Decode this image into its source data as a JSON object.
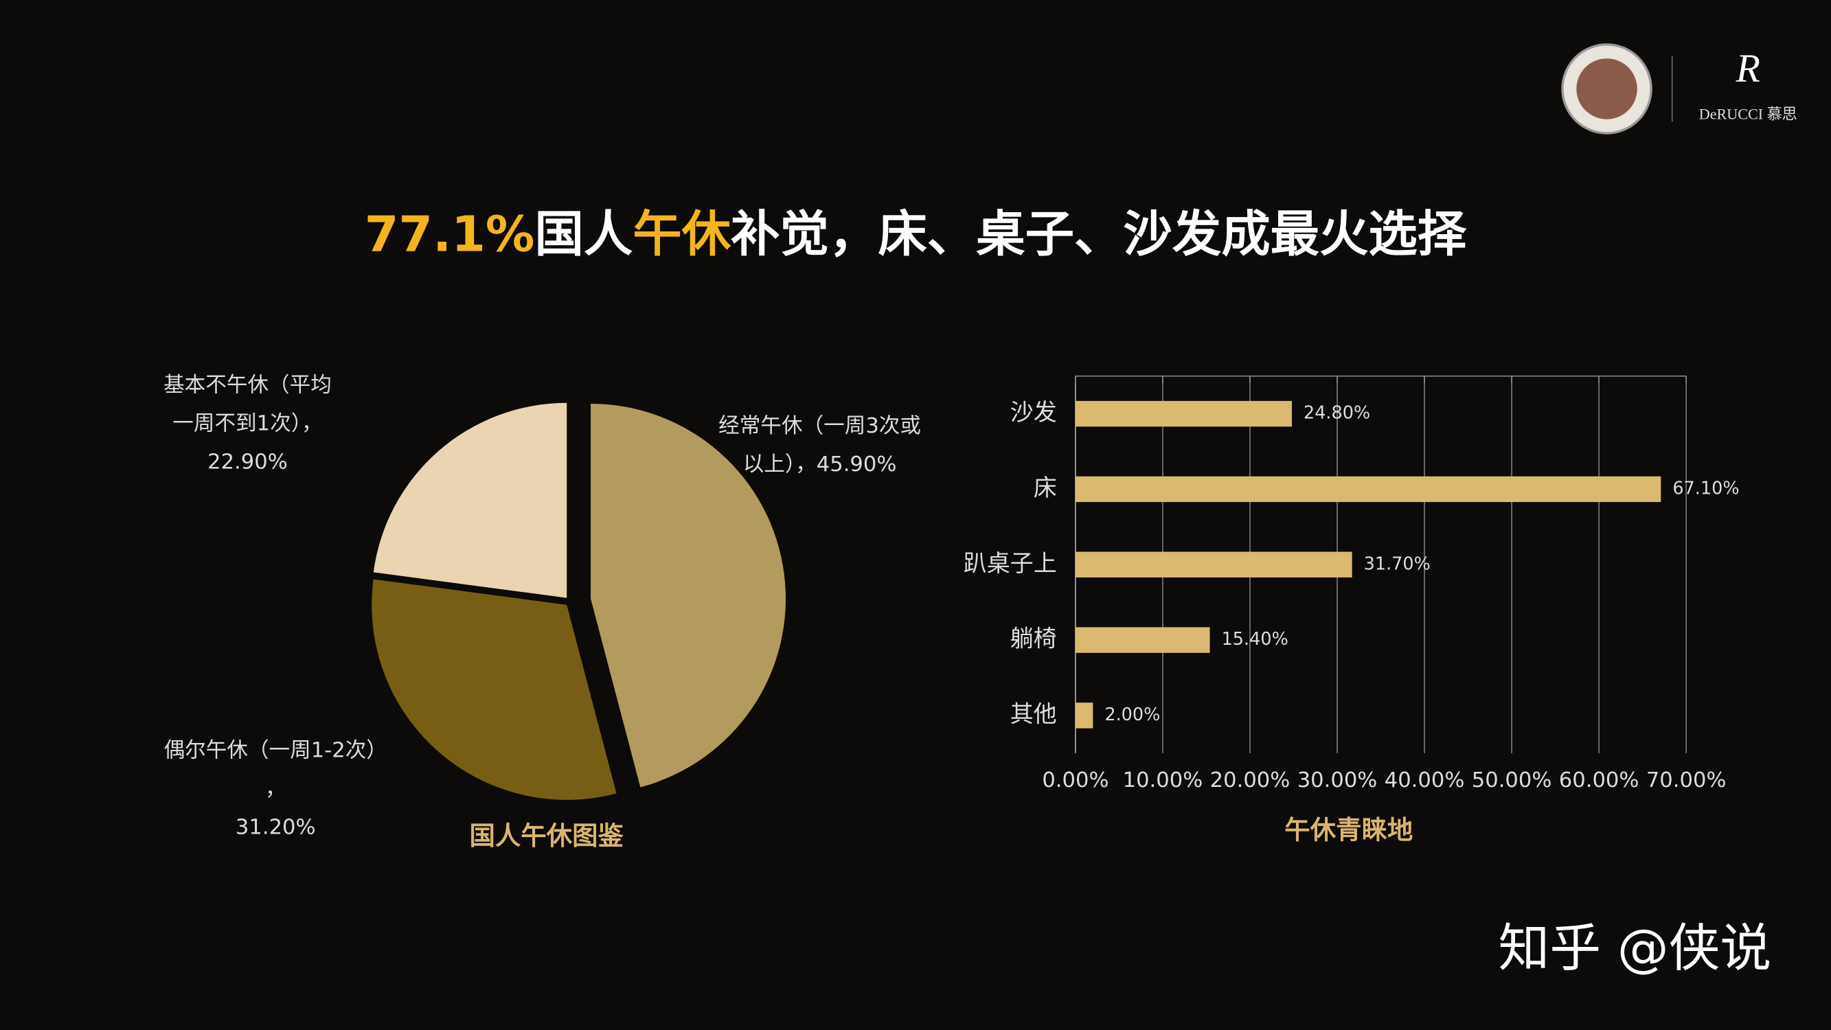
{
  "header": {
    "title": [
      "77.1%",
      "国人",
      "午休",
      "补觉，床、桌子、沙发成最火选择"
    ],
    "brand": "DeRUCCI 慕思"
  },
  "footer": {
    "watermark": "知乎 @侠说"
  },
  "chart_data": [
    {
      "type": "pie",
      "title": "国人午休图鉴",
      "categories": [
        "经常午休（一周3次或以上），",
        "偶尔午休（一周1-2次），",
        "基本不午休（平均一周不到1次），"
      ],
      "values": [
        45.9,
        31.2,
        22.9
      ],
      "value_labels": [
        "45.90%",
        "31.20%",
        "22.90%"
      ],
      "colors": [
        "#b39a5e",
        "#785e15",
        "#ead4b1"
      ]
    },
    {
      "type": "hbar",
      "title": "午休青睐地",
      "categories": [
        "沙发",
        "床",
        "趴桌子上",
        "躺椅",
        "其他"
      ],
      "values": [
        24.8,
        67.1,
        31.7,
        15.4,
        2.0
      ],
      "value_labels": [
        "24.80%",
        "67.10%",
        "31.70%",
        "15.40%",
        "2.00%"
      ],
      "color": "#dcb970",
      "grid": true,
      "xlim": [
        0,
        70
      ],
      "xticks": [
        {
          "value": 0,
          "label": "0.00%"
        },
        {
          "value": 10,
          "label": "10.00%"
        },
        {
          "value": 20,
          "label": "20.00%"
        },
        {
          "value": 30,
          "label": "30.00%"
        },
        {
          "value": 40,
          "label": "40.00%"
        },
        {
          "value": 50,
          "label": "50.00%"
        },
        {
          "value": 60,
          "label": "60.00%"
        },
        {
          "value": 70,
          "label": "70.00%"
        }
      ]
    }
  ]
}
